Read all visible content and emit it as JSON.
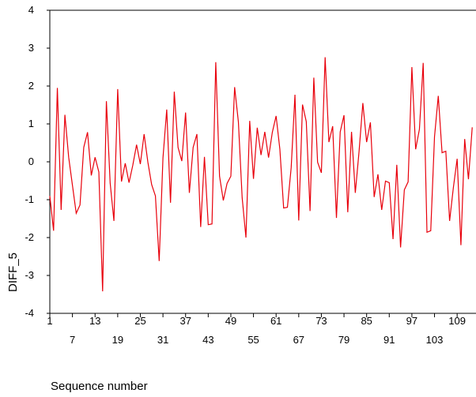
{
  "chart_data": {
    "type": "line",
    "title": "",
    "xlabel": "Sequence number",
    "ylabel": "DIFF_5",
    "xlim": [
      1,
      114
    ],
    "ylim": [
      -4,
      4
    ],
    "yticks": [
      4,
      3,
      2,
      1,
      0,
      -1,
      -2,
      -3,
      -4
    ],
    "xticks_row1": [
      1,
      13,
      25,
      37,
      49,
      61,
      73,
      85,
      97,
      109
    ],
    "xticks_row2": [
      7,
      19,
      31,
      43,
      55,
      67,
      79,
      91,
      103
    ],
    "grid": false,
    "line_color": "#e8000b",
    "series": [
      {
        "values": [
          -0.9,
          -1.82,
          1.95,
          -1.27,
          1.24,
          0.12,
          -0.62,
          -1.36,
          -1.14,
          0.38,
          0.78,
          -0.36,
          0.12,
          -0.27,
          -3.42,
          1.6,
          -0.56,
          -1.56,
          1.92,
          -0.52,
          -0.04,
          -0.55,
          -0.09,
          0.45,
          -0.06,
          0.73,
          -0.01,
          -0.6,
          -0.9,
          -2.62,
          0.1,
          1.38,
          -1.08,
          1.85,
          0.38,
          0.02,
          1.3,
          -0.82,
          0.38,
          0.73,
          -1.72,
          0.13,
          -1.66,
          -1.64,
          2.63,
          -0.38,
          -1.02,
          -0.57,
          -0.38,
          1.97,
          1.05,
          -0.95,
          -2.0,
          1.08,
          -0.45,
          0.9,
          0.18,
          0.79,
          0.11,
          0.78,
          1.21,
          0.33,
          -1.22,
          -1.2,
          -0.15,
          1.77,
          -1.55,
          1.51,
          1.06,
          -1.3,
          2.22,
          -0.01,
          -0.29,
          2.76,
          0.52,
          0.94,
          -1.48,
          0.79,
          1.23,
          -1.33,
          0.79,
          -0.82,
          0.28,
          1.55,
          0.52,
          1.04,
          -0.93,
          -0.33,
          -1.27,
          -0.51,
          -0.55,
          -2.04,
          -0.08,
          -2.26,
          -0.74,
          -0.53,
          2.5,
          0.33,
          0.86,
          2.61,
          -1.86,
          -1.82,
          0.66,
          1.74,
          0.24,
          0.28,
          -1.56,
          -0.68,
          0.08,
          -2.2,
          0.6,
          -0.46,
          0.91
        ]
      }
    ]
  }
}
